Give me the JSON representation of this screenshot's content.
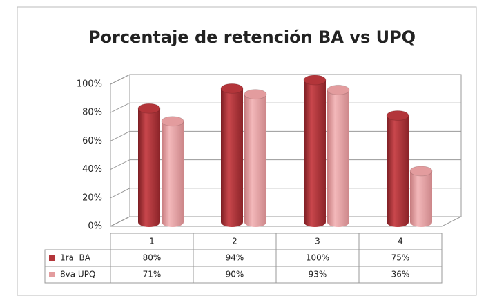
{
  "chart_data": {
    "type": "bar3d",
    "title": "Porcentaje de retención BA vs UPQ",
    "categories": [
      "1",
      "2",
      "3",
      "4"
    ],
    "series": [
      {
        "name": "1ra  BA",
        "color": "#b3353a",
        "values": [
          80,
          94,
          100,
          75
        ],
        "value_labels": [
          "80%",
          "94%",
          "100%",
          "75%"
        ]
      },
      {
        "name": "8va UPQ",
        "color": "#e39c9e",
        "values": [
          71,
          90,
          93,
          36
        ],
        "value_labels": [
          "71%",
          "90%",
          "93%",
          "36%"
        ]
      }
    ],
    "ylim": [
      0,
      100
    ],
    "yticks": [
      {
        "value": 0,
        "label": "0%"
      },
      {
        "value": 20,
        "label": "20%"
      },
      {
        "value": 40,
        "label": "40%"
      },
      {
        "value": 60,
        "label": "60%"
      },
      {
        "value": 80,
        "label": "80%"
      },
      {
        "value": 100,
        "label": "100%"
      }
    ],
    "grid": true
  }
}
